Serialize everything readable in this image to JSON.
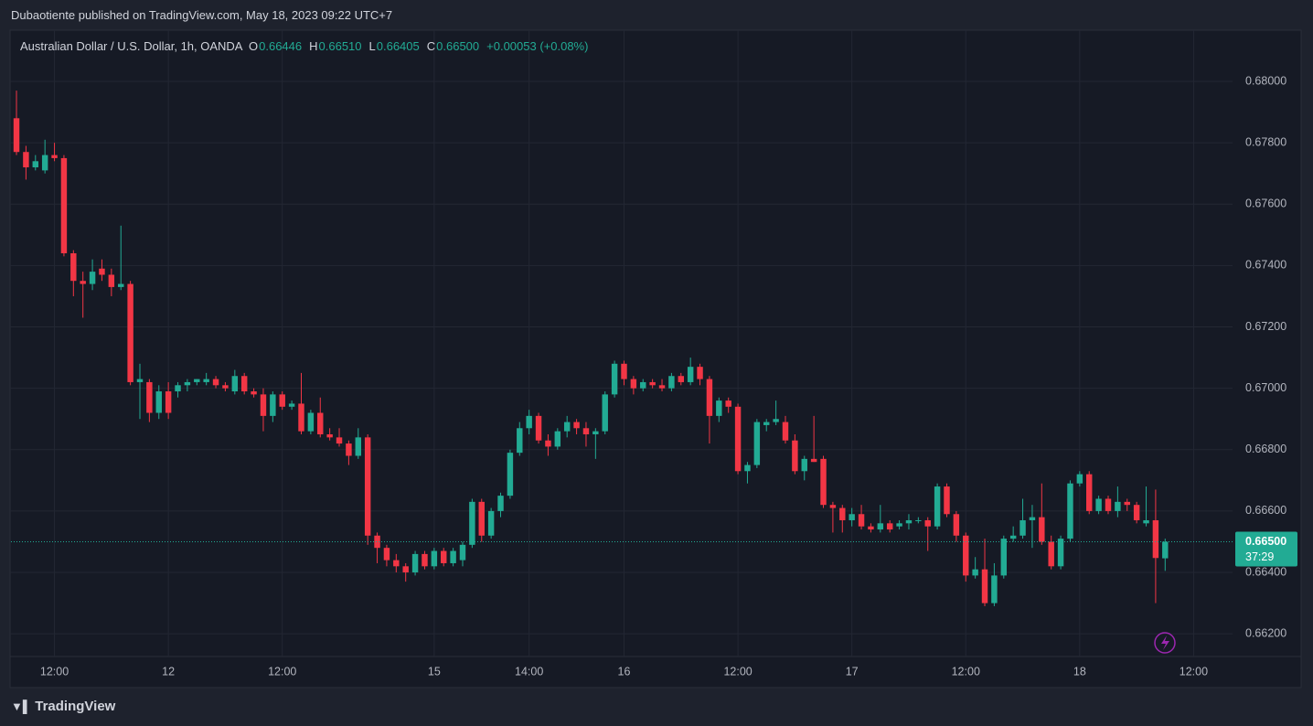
{
  "header": {
    "published": "Dubaotiente published on TradingView.com, May 18, 2023 09:22 UTC+7",
    "brand": "TradingView"
  },
  "chart_data": {
    "type": "candlestick",
    "symbol": "Australian Dollar / U.S. Dollar, 1h, OANDA",
    "ohlc_legend": [
      {
        "key": "O",
        "value": 0.66446
      },
      {
        "key": "H",
        "value": 0.6651
      },
      {
        "key": "L",
        "value": 0.66405
      },
      {
        "key": "C",
        "value": 0.665
      }
    ],
    "ohlc_labels": [
      "0.66446",
      "0.66510",
      "0.66405",
      "0.66500"
    ],
    "change": "+0.00053 (+0.08%)",
    "up_color": "#22ab94",
    "down_color": "#f23645",
    "grid": true,
    "open": [
      0.6788,
      0.6777,
      0.6772,
      0.6771,
      0.6776,
      0.6775,
      0.6744,
      0.6735,
      0.6734,
      0.6739,
      0.6737,
      0.6733,
      0.6734,
      0.6702,
      0.6702,
      0.6692,
      0.6699,
      0.6699,
      0.6701,
      0.6702,
      0.6702,
      0.6703,
      0.6701,
      0.6699,
      0.6704,
      0.6699,
      0.6698,
      0.6691,
      0.6698,
      0.6694,
      0.6695,
      0.6686,
      0.6692,
      0.6685,
      0.6684,
      0.6682,
      0.6678,
      0.6684,
      0.6652,
      0.6648,
      0.6644,
      0.6642,
      0.664,
      0.6646,
      0.6642,
      0.6647,
      0.6643,
      0.6644,
      0.6649,
      0.6663,
      0.6652,
      0.666,
      0.6665,
      0.6679,
      0.6687,
      0.6691,
      0.6683,
      0.6681,
      0.6686,
      0.6689,
      0.6687,
      0.6685,
      0.6686,
      0.6698,
      0.6708,
      0.6703,
      0.67,
      0.6702,
      0.6701,
      0.67,
      0.6704,
      0.6702,
      0.6707,
      0.6703,
      0.6691,
      0.6696,
      0.6694,
      0.6673,
      0.6675,
      0.6688,
      0.6689,
      0.6689,
      0.6683,
      0.6673,
      0.6677,
      0.6677,
      0.6662,
      0.6661,
      0.6657,
      0.6659,
      0.6655,
      0.6654,
      0.6656,
      0.6655,
      0.6656,
      0.6657,
      0.6657,
      0.6655,
      0.6668,
      0.6659,
      0.6652,
      0.6639,
      0.6641,
      0.663,
      0.6639,
      0.6651,
      0.6652,
      0.6657,
      0.6658,
      0.665,
      0.6642,
      0.6651,
      0.6669,
      0.6672,
      0.666,
      0.6664,
      0.666,
      0.6663,
      0.6662,
      0.6656,
      0.6657,
      0.66446
    ],
    "high": [
      0.6797,
      0.6779,
      0.6776,
      0.6781,
      0.678,
      0.6776,
      0.6745,
      0.6738,
      0.6742,
      0.6742,
      0.6739,
      0.6753,
      0.6735,
      0.6708,
      0.6703,
      0.6701,
      0.6702,
      0.6702,
      0.6703,
      0.6703,
      0.6705,
      0.6704,
      0.6702,
      0.6706,
      0.6705,
      0.67,
      0.67,
      0.6699,
      0.6699,
      0.6696,
      0.6705,
      0.6693,
      0.6697,
      0.6687,
      0.6687,
      0.6683,
      0.6687,
      0.6685,
      0.6653,
      0.6649,
      0.6646,
      0.6643,
      0.6647,
      0.6647,
      0.6648,
      0.6648,
      0.6648,
      0.665,
      0.6664,
      0.6664,
      0.6661,
      0.6666,
      0.668,
      0.6689,
      0.6693,
      0.6692,
      0.6685,
      0.6687,
      0.6691,
      0.669,
      0.6689,
      0.6687,
      0.6699,
      0.6709,
      0.6709,
      0.6704,
      0.6703,
      0.6703,
      0.6703,
      0.6705,
      0.6705,
      0.671,
      0.6708,
      0.6704,
      0.6697,
      0.6697,
      0.6695,
      0.6676,
      0.669,
      0.669,
      0.6696,
      0.6691,
      0.6685,
      0.6678,
      0.6691,
      0.6678,
      0.6663,
      0.6662,
      0.6661,
      0.6662,
      0.6656,
      0.6662,
      0.6657,
      0.6657,
      0.6659,
      0.6658,
      0.6658,
      0.6669,
      0.6669,
      0.666,
      0.6653,
      0.6645,
      0.6651,
      0.6643,
      0.6652,
      0.6655,
      0.6664,
      0.6662,
      0.6669,
      0.6652,
      0.6652,
      0.667,
      0.6673,
      0.6673,
      0.6665,
      0.6665,
      0.6668,
      0.6664,
      0.6663,
      0.6668,
      0.6667,
      0.6651
    ],
    "low": [
      0.6776,
      0.6768,
      0.6771,
      0.677,
      0.6774,
      0.6743,
      0.673,
      0.6723,
      0.6732,
      0.6735,
      0.673,
      0.6732,
      0.6701,
      0.669,
      0.6689,
      0.669,
      0.669,
      0.6697,
      0.6699,
      0.6701,
      0.6701,
      0.67,
      0.6699,
      0.6698,
      0.6698,
      0.6697,
      0.6686,
      0.6689,
      0.6693,
      0.6693,
      0.6685,
      0.6685,
      0.6684,
      0.6683,
      0.6681,
      0.6675,
      0.6677,
      0.6649,
      0.6643,
      0.6642,
      0.664,
      0.6637,
      0.6639,
      0.6641,
      0.6641,
      0.6642,
      0.6642,
      0.6642,
      0.6648,
      0.665,
      0.6651,
      0.6658,
      0.6664,
      0.6678,
      0.6685,
      0.6682,
      0.6678,
      0.668,
      0.6684,
      0.6685,
      0.6681,
      0.6677,
      0.6685,
      0.6697,
      0.6701,
      0.6698,
      0.6699,
      0.67,
      0.6699,
      0.6699,
      0.6701,
      0.6701,
      0.6701,
      0.6682,
      0.6689,
      0.6692,
      0.6672,
      0.6669,
      0.6674,
      0.6686,
      0.6688,
      0.6682,
      0.6672,
      0.667,
      0.6676,
      0.6661,
      0.6653,
      0.6653,
      0.6655,
      0.6654,
      0.6653,
      0.6653,
      0.6653,
      0.6654,
      0.6654,
      0.6656,
      0.6647,
      0.6654,
      0.6658,
      0.665,
      0.6637,
      0.6638,
      0.6629,
      0.6629,
      0.6638,
      0.665,
      0.6651,
      0.6648,
      0.6649,
      0.6641,
      0.6641,
      0.665,
      0.6668,
      0.6659,
      0.6659,
      0.6659,
      0.6658,
      0.666,
      0.6656,
      0.6655,
      0.663,
      0.66405
    ],
    "close": [
      0.6777,
      0.6772,
      0.6774,
      0.6776,
      0.6775,
      0.6744,
      0.6735,
      0.6734,
      0.6738,
      0.6737,
      0.6733,
      0.6734,
      0.6702,
      0.6703,
      0.6692,
      0.6699,
      0.6692,
      0.6701,
      0.6702,
      0.6703,
      0.6703,
      0.6701,
      0.67,
      0.6704,
      0.6699,
      0.6698,
      0.6691,
      0.6698,
      0.6694,
      0.6695,
      0.6686,
      0.6692,
      0.6685,
      0.6684,
      0.6682,
      0.6678,
      0.6684,
      0.6652,
      0.6648,
      0.6644,
      0.6642,
      0.664,
      0.6646,
      0.6642,
      0.6647,
      0.6643,
      0.6647,
      0.6649,
      0.6663,
      0.6652,
      0.666,
      0.6665,
      0.6679,
      0.6687,
      0.6691,
      0.6683,
      0.6681,
      0.6686,
      0.6689,
      0.6687,
      0.6685,
      0.6686,
      0.6698,
      0.6708,
      0.6703,
      0.67,
      0.6702,
      0.6701,
      0.67,
      0.6704,
      0.6702,
      0.6707,
      0.6703,
      0.6691,
      0.6696,
      0.6694,
      0.6673,
      0.6675,
      0.6689,
      0.6689,
      0.669,
      0.6683,
      0.6673,
      0.6677,
      0.6676,
      0.6662,
      0.6661,
      0.6657,
      0.6659,
      0.6655,
      0.6654,
      0.6656,
      0.6654,
      0.6656,
      0.6657,
      0.6657,
      0.6655,
      0.6668,
      0.6659,
      0.6652,
      0.6639,
      0.6641,
      0.663,
      0.6639,
      0.6651,
      0.6652,
      0.6657,
      0.6658,
      0.665,
      0.6642,
      0.6651,
      0.6669,
      0.6672,
      0.666,
      0.6664,
      0.666,
      0.6663,
      0.6662,
      0.6657,
      0.6657,
      0.66447,
      0.665
    ],
    "xlim": [
      -0.58,
      128.1
    ],
    "xticks": [
      {
        "value": 4,
        "label": "12:00"
      },
      {
        "value": 16,
        "label": "12"
      },
      {
        "value": 28,
        "label": "12:00"
      },
      {
        "value": 44,
        "label": "15"
      },
      {
        "value": 54,
        "label": "14:00"
      },
      {
        "value": 64,
        "label": "16"
      },
      {
        "value": 76,
        "label": "12:00"
      },
      {
        "value": 88,
        "label": "17"
      },
      {
        "value": 100,
        "label": "12:00"
      },
      {
        "value": 112,
        "label": "18"
      },
      {
        "value": 124,
        "label": "12:00"
      }
    ],
    "ylim": [
      0.66126,
      0.68161
    ],
    "yticks": [
      {
        "value": 0.662,
        "label": "0.66200"
      },
      {
        "value": 0.664,
        "label": "0.66400"
      },
      {
        "value": 0.666,
        "label": "0.66600"
      },
      {
        "value": 0.668,
        "label": "0.66800"
      },
      {
        "value": 0.67,
        "label": "0.67000"
      },
      {
        "value": 0.672,
        "label": "0.67200"
      },
      {
        "value": 0.674,
        "label": "0.67400"
      },
      {
        "value": 0.676,
        "label": "0.67600"
      },
      {
        "value": 0.678,
        "label": "0.67800"
      },
      {
        "value": 0.68,
        "label": "0.68000"
      }
    ],
    "price_line": {
      "value": 0.665,
      "label": "0.66500",
      "countdown": "37:29"
    }
  }
}
